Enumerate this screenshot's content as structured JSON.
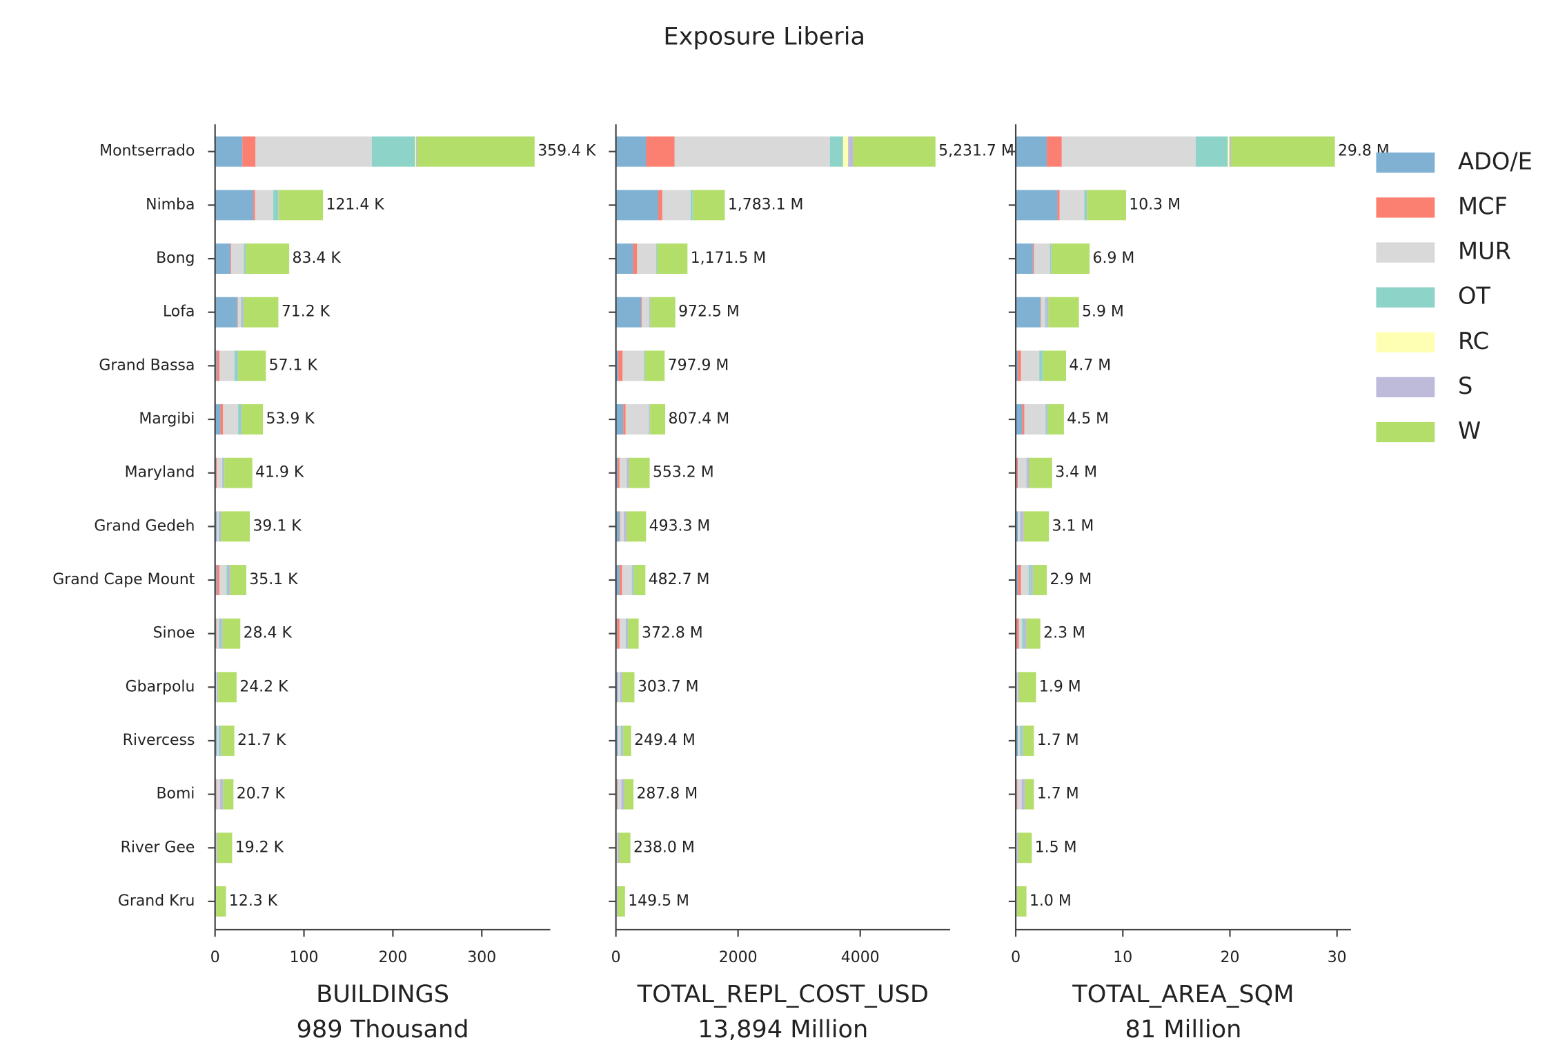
{
  "chart_data": {
    "type": "bar",
    "orientation": "horizontal",
    "stacked": true,
    "title": "Exposure Liberia",
    "legend": "upper right",
    "grid": false,
    "categories": [
      "Montserrado",
      "Nimba",
      "Bong",
      "Lofa",
      "Grand Bassa",
      "Margibi",
      "Maryland",
      "Grand Gedeh",
      "Grand Cape Mount",
      "Sinoe",
      "Gbarpolu",
      "Rivercess",
      "Bomi",
      "River Gee",
      "Grand Kru"
    ],
    "series": [
      {
        "name": "ADO/E",
        "color": "#80b1d3"
      },
      {
        "name": "MCF",
        "color": "#fb8072"
      },
      {
        "name": "MUR",
        "color": "#d9d9d9"
      },
      {
        "name": "OT",
        "color": "#8dd3c7"
      },
      {
        "name": "RC",
        "color": "#ffffb3"
      },
      {
        "name": "S",
        "color": "#bebada"
      },
      {
        "name": "W",
        "color": "#b3de69"
      }
    ],
    "panels": [
      {
        "xlabel": "BUILDINGS",
        "xlabel_sub": "989 Thousand",
        "xlim": [
          0,
          377
        ],
        "xticks": [
          0,
          100,
          200,
          300
        ],
        "values": [
          [
            30.7,
            43,
            17,
            25,
            2,
            6,
            1,
            2,
            2,
            1,
            1,
            2,
            1,
            0.5,
            0.2
          ],
          [
            14.8,
            2,
            1,
            0.5,
            3,
            3,
            1,
            0,
            3,
            0.5,
            0,
            0,
            0.5,
            0,
            0
          ],
          [
            130.7,
            20.5,
            14.5,
            3.5,
            17,
            17,
            6,
            2,
            8,
            3,
            1,
            2,
            4,
            1,
            0.5
          ],
          [
            48.9,
            5.5,
            1.5,
            1,
            3.5,
            3,
            0.5,
            0.5,
            2,
            2,
            0.5,
            2,
            0.5,
            0,
            0
          ],
          [
            1,
            0,
            0,
            0,
            0,
            0,
            0,
            0,
            0,
            0,
            0,
            0,
            0,
            0,
            0
          ],
          [
            1,
            0.5,
            0.5,
            2,
            0.5,
            1,
            2,
            2,
            2,
            2,
            1,
            1,
            3,
            1,
            0.5
          ],
          [
            132.3,
            49.9,
            48.9,
            39.2,
            31.1,
            23.9,
            31.4,
            32.6,
            18.1,
            19.9,
            20.7,
            14.7,
            11.7,
            16.7,
            11.1
          ]
        ],
        "totals": [
          359.4,
          121.4,
          83.4,
          71.2,
          57.1,
          53.9,
          41.9,
          39.1,
          35.1,
          28.4,
          24.2,
          21.7,
          20.7,
          19.2,
          12.3
        ],
        "total_labels": [
          "359.4 K",
          "121.4 K",
          "83.4 K",
          "71.2 K",
          "57.1 K",
          "53.9 K",
          "41.9 K",
          "39.1 K",
          "35.1 K",
          "28.4 K",
          "24.2 K",
          "21.7 K",
          "20.7 K",
          "19.2 K",
          "12.3 K"
        ]
      },
      {
        "xlabel": "TOTAL_REPL_COST_USD",
        "xlabel_sub": "13,894 Million",
        "xlim": [
          0,
          5471
        ],
        "xticks": [
          0,
          2000,
          4000
        ],
        "values": [
          [
            496,
            694,
            281,
            413,
            40,
            120,
            30,
            60,
            60,
            20,
            30,
            30,
            20,
            10,
            5
          ],
          [
            463,
            66,
            66,
            10,
            70,
            40,
            30,
            10,
            40,
            40,
            0,
            0,
            10,
            0,
            0
          ],
          [
            2545,
            463,
            314,
            120,
            347,
            380,
            120,
            60,
            160,
            100,
            40,
            50,
            60,
            20,
            10
          ],
          [
            215,
            33,
            10,
            5,
            15,
            10,
            5,
            5,
            15,
            20,
            3,
            20,
            5,
            0,
            0
          ],
          [
            83,
            0,
            0,
            0,
            0,
            0,
            0,
            0,
            0,
            0,
            0,
            0,
            0,
            0,
            0
          ],
          [
            83,
            5,
            5,
            15,
            5,
            10,
            30,
            40,
            20,
            20,
            30,
            20,
            40,
            20,
            15
          ],
          [
            1346.7,
            522.1,
            495.5,
            409.5,
            320.9,
            247.4,
            338.2,
            318.3,
            187.7,
            172.8,
            200.7,
            129.4,
            152.8,
            188.0,
            119.5
          ]
        ],
        "totals": [
          5231.7,
          1783.1,
          1171.5,
          972.5,
          797.9,
          807.4,
          553.2,
          493.3,
          482.7,
          372.8,
          303.7,
          249.4,
          287.8,
          238.0,
          149.5
        ],
        "total_labels": [
          "5,231.7 M",
          "1,783.1 M",
          "1,171.5 M",
          "972.5 M",
          "797.9 M",
          "807.4 M",
          "553.2 M",
          "493.3 M",
          "482.7 M",
          "372.8 M",
          "303.7 M",
          "249.4 M",
          "287.8 M",
          "238.0 M",
          "149.5 M"
        ]
      },
      {
        "xlabel": "TOTAL_AREA_SQM",
        "xlabel_sub": "81 Million",
        "xlim": [
          0,
          31.3
        ],
        "xticks": [
          0,
          10,
          20,
          30
        ],
        "values": [
          [
            2.9,
            3.9,
            1.6,
            2.3,
            0.2,
            0.6,
            0.1,
            0.2,
            0.2,
            0.1,
            0.1,
            0.2,
            0.1,
            0.05,
            0.02
          ],
          [
            1.4,
            0.2,
            0.1,
            0.05,
            0.3,
            0.2,
            0.1,
            0,
            0.3,
            0.2,
            0,
            0,
            0.05,
            0,
            0
          ],
          [
            12.5,
            2.3,
            1.5,
            0.4,
            1.7,
            2.0,
            0.8,
            0.2,
            0.7,
            0.3,
            0.1,
            0.2,
            0.4,
            0.1,
            0.05
          ],
          [
            3.0,
            0.2,
            0.1,
            0.1,
            0.3,
            0.1,
            0.05,
            0.05,
            0.2,
            0.2,
            0,
            0.2,
            0,
            0,
            0
          ],
          [
            0.15,
            0,
            0,
            0,
            0,
            0,
            0,
            0,
            0,
            0,
            0,
            0,
            0,
            0,
            0
          ],
          [
            0.15,
            0.05,
            0.05,
            0.2,
            0.05,
            0.1,
            0.2,
            0.3,
            0.2,
            0.2,
            0.1,
            0.1,
            0.3,
            0.1,
            0.05
          ],
          [
            9.7,
            3.65,
            3.55,
            2.85,
            2.15,
            1.5,
            2.15,
            2.35,
            1.3,
            1.3,
            1.6,
            1.0,
            0.85,
            1.25,
            0.88
          ]
        ],
        "totals": [
          29.8,
          10.3,
          6.9,
          5.9,
          4.7,
          4.5,
          3.4,
          3.1,
          2.9,
          2.3,
          1.9,
          1.7,
          1.7,
          1.5,
          1.0
        ],
        "total_labels": [
          "29.8 M",
          "10.3 M",
          "6.9 M",
          "5.9 M",
          "4.7 M",
          "4.5 M",
          "3.4 M",
          "3.1 M",
          "2.9 M",
          "2.3 M",
          "1.9 M",
          "1.7 M",
          "1.7 M",
          "1.5 M",
          "1.0 M"
        ]
      }
    ]
  }
}
